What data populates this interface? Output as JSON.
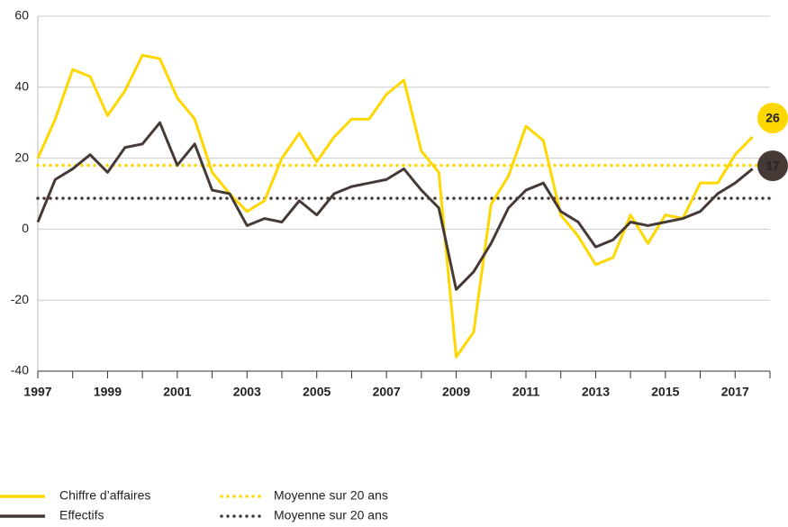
{
  "chart_data": {
    "type": "line",
    "x": [
      1997,
      1997.5,
      1998,
      1998.5,
      1999,
      1999.5,
      2000,
      2000.5,
      2001,
      2001.5,
      2002,
      2002.5,
      2003,
      2003.5,
      2004,
      2004.5,
      2005,
      2005.5,
      2006,
      2006.5,
      2007,
      2007.5,
      2008,
      2008.5,
      2009,
      2009.5,
      2010,
      2010.5,
      2011,
      2011.5,
      2012,
      2012.5,
      2013,
      2013.5,
      2014,
      2014.5,
      2015,
      2015.5,
      2016,
      2016.5,
      2017,
      2017.5
    ],
    "series": [
      {
        "name": "Chiffre d’affaires",
        "color": "#ffd700",
        "values": [
          20,
          31,
          45,
          43,
          32,
          39,
          49,
          48,
          37,
          31,
          16,
          10,
          5,
          8,
          20,
          27,
          19,
          26,
          31,
          31,
          38,
          42,
          22,
          16,
          -36,
          -29,
          7,
          15,
          29,
          25,
          4,
          -2,
          -10,
          -8,
          4,
          -4,
          4,
          3,
          13,
          13,
          21,
          26
        ]
      },
      {
        "name": "Effectifs",
        "color": "#463a36",
        "values": [
          2,
          14,
          17,
          21,
          16,
          23,
          24,
          30,
          18,
          24,
          11,
          10,
          1,
          3,
          2,
          8,
          4,
          10,
          12,
          13,
          14,
          17,
          11,
          6,
          -17,
          -12,
          -4,
          6,
          11,
          13,
          5,
          2,
          -5,
          -3,
          2,
          1,
          2,
          3,
          5,
          10,
          13,
          17
        ]
      }
    ],
    "reference_lines": [
      {
        "name": "Moyenne sur 20 ans",
        "color": "#ffd700",
        "value": 18
      },
      {
        "name": "Moyenne sur 20 ans",
        "color": "#463a36",
        "value": 8.7
      }
    ],
    "xlim": [
      1997,
      2018
    ],
    "xticks": [
      1997,
      1999,
      2001,
      2003,
      2005,
      2007,
      2009,
      2011,
      2013,
      2015,
      2017
    ],
    "xticks_minor": [
      1998,
      2000,
      2002,
      2004,
      2006,
      2008,
      2010,
      2012,
      2014,
      2016,
      2018
    ],
    "ylim": [
      -40,
      60
    ],
    "yticks": [
      -40,
      -20,
      0,
      20,
      40,
      60
    ],
    "grid": true
  }
}
